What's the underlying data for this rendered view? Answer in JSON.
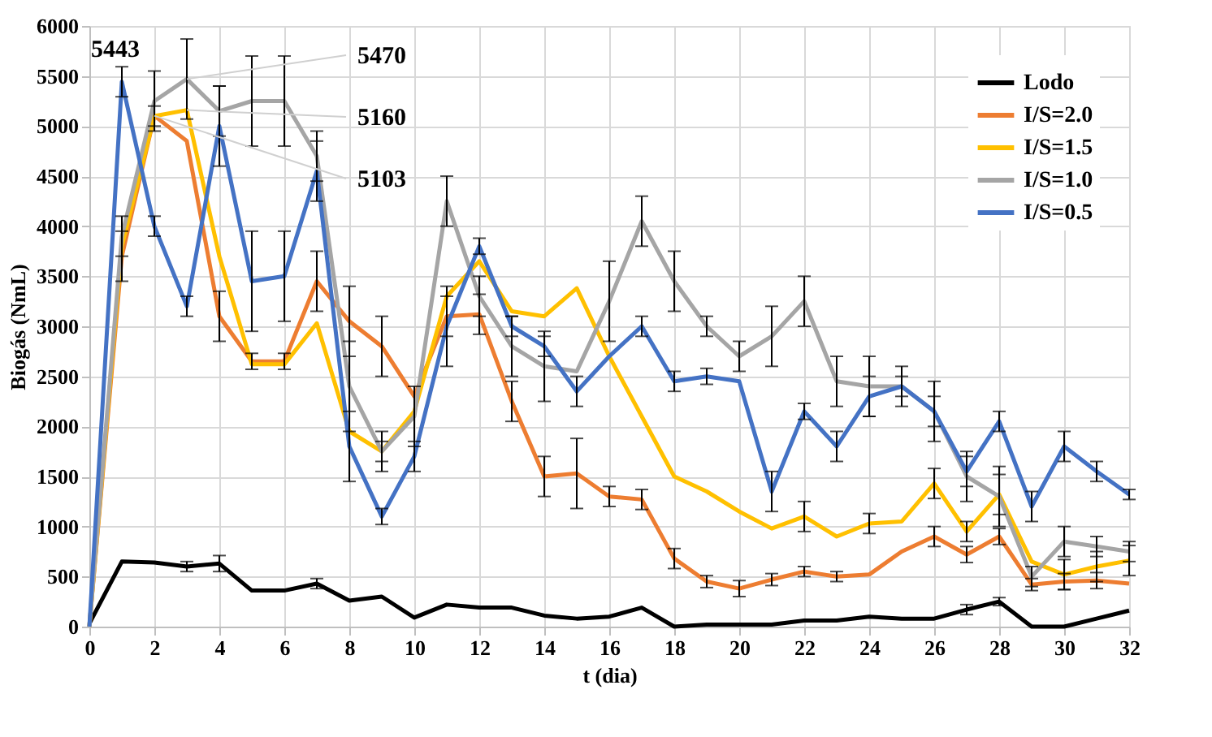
{
  "chart_data": {
    "type": "line",
    "xlabel": "t (dia)",
    "ylabel": "Biogás (NmL)",
    "x": [
      0,
      1,
      2,
      3,
      4,
      5,
      6,
      7,
      8,
      9,
      10,
      11,
      12,
      13,
      14,
      15,
      16,
      17,
      18,
      19,
      20,
      21,
      22,
      23,
      24,
      25,
      26,
      27,
      28,
      29,
      30,
      31,
      32
    ],
    "xlim": [
      0,
      32
    ],
    "xticks": [
      0,
      2,
      4,
      6,
      8,
      10,
      12,
      14,
      16,
      18,
      20,
      22,
      24,
      26,
      28,
      30,
      32
    ],
    "ylim": [
      0,
      6000
    ],
    "yticks": [
      0,
      500,
      1000,
      1500,
      2000,
      2500,
      3000,
      3500,
      4000,
      4500,
      5000,
      5500,
      6000
    ],
    "grid": true,
    "legend": "top right",
    "marker": "none",
    "line_style": "solid",
    "series": [
      {
        "name": "Lodo",
        "color": "#000000",
        "values": [
          30,
          650,
          640,
          600,
          630,
          360,
          360,
          430,
          260,
          300,
          90,
          220,
          190,
          190,
          110,
          80,
          100,
          190,
          0,
          20,
          20,
          20,
          60,
          60,
          100,
          80,
          80,
          170,
          250,
          0,
          0,
          80,
          160
        ],
        "errors": [
          null,
          null,
          null,
          50,
          80,
          null,
          null,
          50,
          null,
          null,
          null,
          null,
          null,
          null,
          null,
          null,
          null,
          null,
          null,
          null,
          null,
          null,
          null,
          null,
          null,
          null,
          null,
          50,
          40,
          null,
          null,
          null,
          null
        ]
      },
      {
        "name": "I/S=2.0",
        "color": "#ed7d31",
        "values": [
          0,
          3700,
          5103,
          4850,
          3100,
          2650,
          2650,
          3450,
          3050,
          2800,
          2300,
          3100,
          3120,
          2250,
          1500,
          1530,
          1300,
          1270,
          680,
          450,
          380,
          470,
          550,
          500,
          520,
          750,
          900,
          720,
          900,
          420,
          450,
          460,
          430
        ],
        "errors": [
          null,
          250,
          null,
          null,
          250,
          80,
          80,
          300,
          350,
          300,
          null,
          200,
          200,
          200,
          200,
          350,
          100,
          100,
          100,
          60,
          80,
          60,
          50,
          50,
          null,
          null,
          100,
          80,
          80,
          60,
          80,
          80,
          null
        ]
      },
      {
        "name": "I/S=1.5",
        "color": "#ffc000",
        "values": [
          0,
          3800,
          5100,
          5160,
          3700,
          2620,
          2620,
          3030,
          1950,
          1750,
          2150,
          3300,
          3650,
          3150,
          3100,
          3380,
          2700,
          2100,
          1500,
          1350,
          1150,
          980,
          1100,
          900,
          1030,
          1050,
          1430,
          950,
          1320,
          650,
          520,
          600,
          660
        ],
        "errors": [
          null,
          null,
          100,
          null,
          null,
          null,
          null,
          null,
          null,
          100,
          null,
          null,
          null,
          null,
          null,
          null,
          null,
          null,
          null,
          null,
          null,
          null,
          150,
          null,
          100,
          null,
          150,
          100,
          200,
          null,
          150,
          150,
          150
        ]
      },
      {
        "name": "I/S=1.0",
        "color": "#a5a5a5",
        "values": [
          0,
          3900,
          5250,
          5470,
          5150,
          5250,
          5250,
          4700,
          2400,
          1750,
          2100,
          4250,
          3300,
          2800,
          2600,
          2550,
          3250,
          4050,
          3450,
          3000,
          2700,
          2900,
          3250,
          2450,
          2400,
          2400,
          2150,
          1500,
          1300,
          500,
          850,
          800,
          750
        ],
        "errors": [
          null,
          200,
          300,
          400,
          250,
          450,
          450,
          250,
          450,
          200,
          300,
          250,
          200,
          300,
          350,
          null,
          400,
          250,
          300,
          100,
          150,
          300,
          250,
          250,
          300,
          200,
          300,
          250,
          300,
          100,
          150,
          100,
          100
        ]
      },
      {
        "name": "I/S=0.5",
        "color": "#4472c4",
        "values": [
          0,
          5443,
          4000,
          3200,
          5000,
          3450,
          3500,
          4550,
          1800,
          1100,
          1700,
          3000,
          3800,
          3000,
          2800,
          2350,
          2700,
          3000,
          2450,
          2500,
          2450,
          1350,
          2150,
          1800,
          2300,
          2400,
          2150,
          1550,
          2050,
          1200,
          1800,
          1550,
          1320
        ],
        "errors": [
          null,
          150,
          100,
          100,
          400,
          500,
          450,
          300,
          350,
          80,
          150,
          400,
          80,
          100,
          100,
          150,
          null,
          100,
          100,
          80,
          null,
          200,
          80,
          150,
          200,
          100,
          150,
          150,
          100,
          150,
          150,
          100,
          50
        ]
      }
    ],
    "annotations": [
      {
        "text": "5443",
        "x": 1,
        "y": 5443
      },
      {
        "text": "5470",
        "x": 3,
        "y": 5470
      },
      {
        "text": "5160",
        "x": 3,
        "y": 5160
      },
      {
        "text": "5103",
        "x": 2,
        "y": 5103
      }
    ]
  }
}
